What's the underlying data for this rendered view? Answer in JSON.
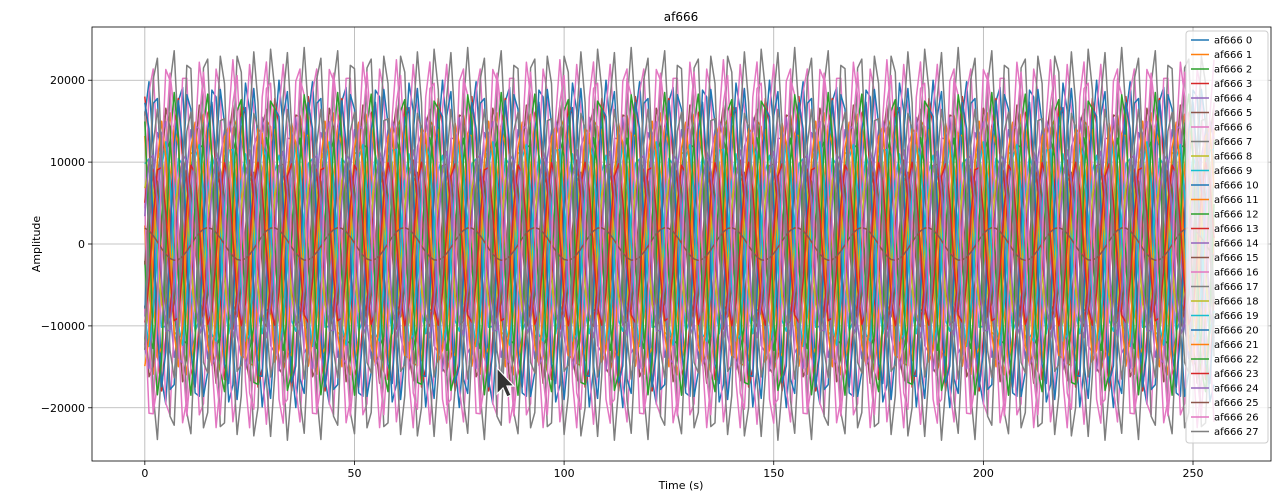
{
  "chart_data": {
    "type": "line",
    "title": "af666",
    "xlabel": "Time (s)",
    "ylabel": "Amplitude",
    "xlim": [
      -12.6,
      268.6
    ],
    "ylim": [
      -26500,
      26500
    ],
    "xticks": [
      0,
      50,
      100,
      150,
      200,
      250
    ],
    "yticks": [
      -20000,
      -10000,
      0,
      10000,
      20000
    ],
    "grid": true,
    "legend_position": "top-right",
    "x_start": 0,
    "x_end": 255,
    "x_step": 1,
    "series": [
      {
        "name": "af666 0",
        "color": "#1f77b4",
        "amplitude": 20000,
        "period": 7.8,
        "phase": 0.9
      },
      {
        "name": "af666 1",
        "color": "#ff7f0e",
        "amplitude": 16000,
        "period": 7.8,
        "phase": 3.0
      },
      {
        "name": "af666 2",
        "color": "#2ca02c",
        "amplitude": 13500,
        "period": 7.8,
        "phase": 4.4
      },
      {
        "name": "af666 3",
        "color": "#d62728",
        "amplitude": 18000,
        "period": 7.8,
        "phase": 1.57
      },
      {
        "name": "af666 4",
        "color": "#9467bd",
        "amplitude": 14000,
        "period": 7.8,
        "phase": 5.2
      },
      {
        "name": "af666 5",
        "color": "#8c564b",
        "amplitude": 17000,
        "period": 7.8,
        "phase": 3.6
      },
      {
        "name": "af666 6",
        "color": "#e377c2",
        "amplitude": 22000,
        "period": 7.8,
        "phase": 0.2
      },
      {
        "name": "af666 7",
        "color": "#7f7f7f",
        "amplitude": 24000,
        "period": 7.8,
        "phase": 2.4
      },
      {
        "name": "af666 8",
        "color": "#bcbd22",
        "amplitude": 12000,
        "period": 7.8,
        "phase": 4.9
      },
      {
        "name": "af666 9",
        "color": "#17becf",
        "amplitude": 11000,
        "period": 7.8,
        "phase": 1.1
      },
      {
        "name": "af666 10",
        "color": "#1f77b4",
        "amplitude": 19000,
        "period": 7.8,
        "phase": 5.8
      },
      {
        "name": "af666 11",
        "color": "#ff7f0e",
        "amplitude": 14500,
        "period": 7.8,
        "phase": 2.0
      },
      {
        "name": "af666 12",
        "color": "#2ca02c",
        "amplitude": 13000,
        "period": 7.8,
        "phase": 3.3
      },
      {
        "name": "af666 13",
        "color": "#d62728",
        "amplitude": 10500,
        "period": 7.8,
        "phase": 0.5
      },
      {
        "name": "af666 14",
        "color": "#9467bd",
        "amplitude": 15500,
        "period": 7.8,
        "phase": 4.1
      },
      {
        "name": "af666 15",
        "color": "#8c564b",
        "amplitude": 9000,
        "period": 7.8,
        "phase": 6.0
      },
      {
        "name": "af666 16",
        "color": "#e377c2",
        "amplitude": 21000,
        "period": 7.8,
        "phase": 2.9
      },
      {
        "name": "af666 17",
        "color": "#7f7f7f",
        "amplitude": 16500,
        "period": 7.8,
        "phase": 5.5
      },
      {
        "name": "af666 18",
        "color": "#bcbd22",
        "amplitude": 9500,
        "period": 7.8,
        "phase": 0.8
      },
      {
        "name": "af666 19",
        "color": "#17becf",
        "amplitude": 12500,
        "period": 7.8,
        "phase": 3.9
      },
      {
        "name": "af666 20",
        "color": "#1f77b4",
        "amplitude": 17500,
        "period": 7.8,
        "phase": 1.4
      },
      {
        "name": "af666 21",
        "color": "#ff7f0e",
        "amplitude": 15000,
        "period": 7.8,
        "phase": 4.6
      },
      {
        "name": "af666 22",
        "color": "#2ca02c",
        "amplitude": 18500,
        "period": 7.8,
        "phase": 2.2
      },
      {
        "name": "af666 23",
        "color": "#d62728",
        "amplitude": 10000,
        "period": 7.8,
        "phase": 5.0
      },
      {
        "name": "af666 24",
        "color": "#9467bd",
        "amplitude": 11500,
        "period": 7.8,
        "phase": 0.3
      },
      {
        "name": "af666 25",
        "color": "#8c564b",
        "amplitude": 2000,
        "period": 15.6,
        "phase": 1.8
      },
      {
        "name": "af666 26",
        "color": "#e377c2",
        "amplitude": 22500,
        "period": 7.8,
        "phase": 3.5
      },
      {
        "name": "af666 27",
        "color": "#7f7f7f",
        "amplitude": 23500,
        "period": 7.8,
        "phase": 5.7
      }
    ]
  }
}
